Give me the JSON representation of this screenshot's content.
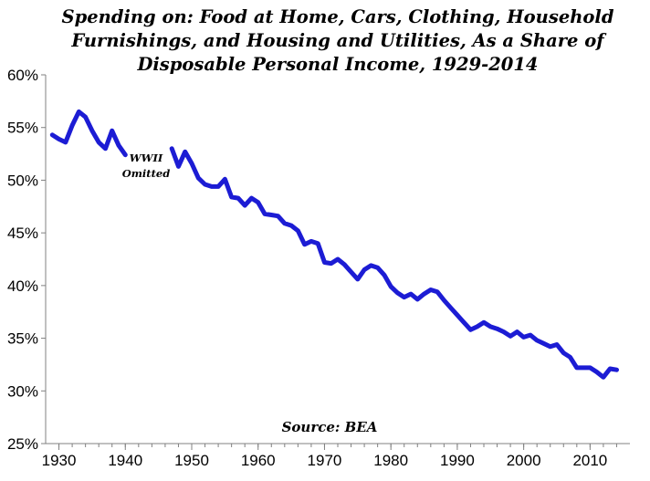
{
  "chart_data": {
    "type": "line",
    "title_lines": [
      "Spending on: Food at Home, Cars, Clothing, Household",
      "Furnishings, and Housing and Utilities, As a Share of",
      "Disposable Personal Income, 1929-2014"
    ],
    "xlabel": "",
    "ylabel": "",
    "xlim": [
      1928,
      2016
    ],
    "ylim": [
      25,
      60
    ],
    "x_ticks": [
      "1930",
      "1940",
      "1950",
      "1960",
      "1970",
      "1980",
      "1990",
      "2000",
      "2010"
    ],
    "y_ticks": [
      "25%",
      "30%",
      "35%",
      "40%",
      "45%",
      "50%",
      "55%",
      "60%"
    ],
    "grid": false,
    "series_color": "#1c1cd4",
    "annotations": [
      {
        "text_lines": [
          "WWII",
          "Omitted"
        ],
        "x": 1941,
        "y": 51.5
      }
    ],
    "source": "Source: BEA",
    "series": [
      {
        "segments": [
          {
            "x": [
              1929,
              1930,
              1931,
              1932,
              1933,
              1934,
              1935,
              1936,
              1937,
              1938,
              1939,
              1940
            ],
            "y": [
              54.3,
              53.9,
              53.6,
              55.2,
              56.5,
              56.0,
              54.7,
              53.6,
              53.0,
              54.7,
              53.3,
              52.4
            ]
          },
          {
            "x": [
              1947,
              1948,
              1949,
              1950,
              1951,
              1952,
              1953,
              1954,
              1955,
              1956,
              1957,
              1958,
              1959,
              1960,
              1961,
              1962,
              1963,
              1964,
              1965,
              1966,
              1967,
              1968,
              1969,
              1970,
              1971,
              1972,
              1973,
              1974,
              1975,
              1976,
              1977,
              1978,
              1979,
              1980,
              1981,
              1982,
              1983,
              1984,
              1985,
              1986,
              1987,
              1988,
              1989,
              1990,
              1991,
              1992,
              1993,
              1994,
              1995,
              1996,
              1997,
              1998,
              1999,
              2000,
              2001,
              2002,
              2003,
              2004,
              2005,
              2006,
              2007,
              2008,
              2009,
              2010,
              2011,
              2012,
              2013,
              2014
            ],
            "y": [
              53.0,
              51.3,
              52.7,
              51.6,
              50.2,
              49.6,
              49.4,
              49.4,
              50.1,
              48.4,
              48.3,
              47.6,
              48.3,
              47.9,
              46.8,
              46.7,
              46.6,
              45.9,
              45.7,
              45.2,
              43.9,
              44.2,
              44.0,
              42.2,
              42.1,
              42.5,
              42.0,
              41.3,
              40.6,
              41.5,
              41.9,
              41.7,
              41.0,
              39.9,
              39.3,
              38.9,
              39.2,
              38.7,
              39.2,
              39.6,
              39.4,
              38.6,
              37.9,
              37.2,
              36.5,
              35.8,
              36.1,
              36.5,
              36.1,
              35.9,
              35.6,
              35.2,
              35.6,
              35.1,
              35.3,
              34.8,
              34.5,
              34.2,
              34.4,
              33.6,
              33.2,
              32.2,
              32.2,
              32.2,
              31.8,
              31.3,
              32.1,
              32.0
            ]
          }
        ]
      }
    ]
  }
}
